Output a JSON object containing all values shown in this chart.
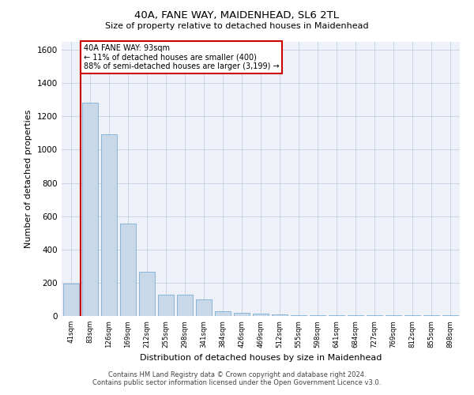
{
  "title": "40A, FANE WAY, MAIDENHEAD, SL6 2TL",
  "subtitle": "Size of property relative to detached houses in Maidenhead",
  "xlabel": "Distribution of detached houses by size in Maidenhead",
  "ylabel": "Number of detached properties",
  "footer_line1": "Contains HM Land Registry data © Crown copyright and database right 2024.",
  "footer_line2": "Contains public sector information licensed under the Open Government Licence v3.0.",
  "annotation_title": "40A FANE WAY: 93sqm",
  "annotation_line1": "← 11% of detached houses are smaller (400)",
  "annotation_line2": "88% of semi-detached houses are larger (3,199) →",
  "property_size": 93,
  "bar_color": "#c8d8e8",
  "bar_edge_color": "#7bafd4",
  "redline_color": "#cc0000",
  "annotation_box_color": "#cc0000",
  "grid_color": "#c8d4e4",
  "background_color": "#eef2f8",
  "categories": [
    "41sqm",
    "83sqm",
    "126sqm",
    "169sqm",
    "212sqm",
    "255sqm",
    "298sqm",
    "341sqm",
    "384sqm",
    "426sqm",
    "469sqm",
    "512sqm",
    "555sqm",
    "598sqm",
    "641sqm",
    "684sqm",
    "727sqm",
    "769sqm",
    "812sqm",
    "855sqm",
    "898sqm"
  ],
  "bin_edges": [
    41,
    83,
    126,
    169,
    212,
    255,
    298,
    341,
    384,
    426,
    469,
    512,
    555,
    598,
    641,
    684,
    727,
    769,
    812,
    855,
    898,
    941
  ],
  "values": [
    195,
    1280,
    1090,
    555,
    265,
    130,
    130,
    100,
    30,
    20,
    15,
    8,
    5,
    5,
    5,
    5,
    5,
    5,
    5,
    5,
    5
  ],
  "ylim": [
    0,
    1650
  ],
  "yticks": [
    0,
    200,
    400,
    600,
    800,
    1000,
    1200,
    1400,
    1600
  ]
}
